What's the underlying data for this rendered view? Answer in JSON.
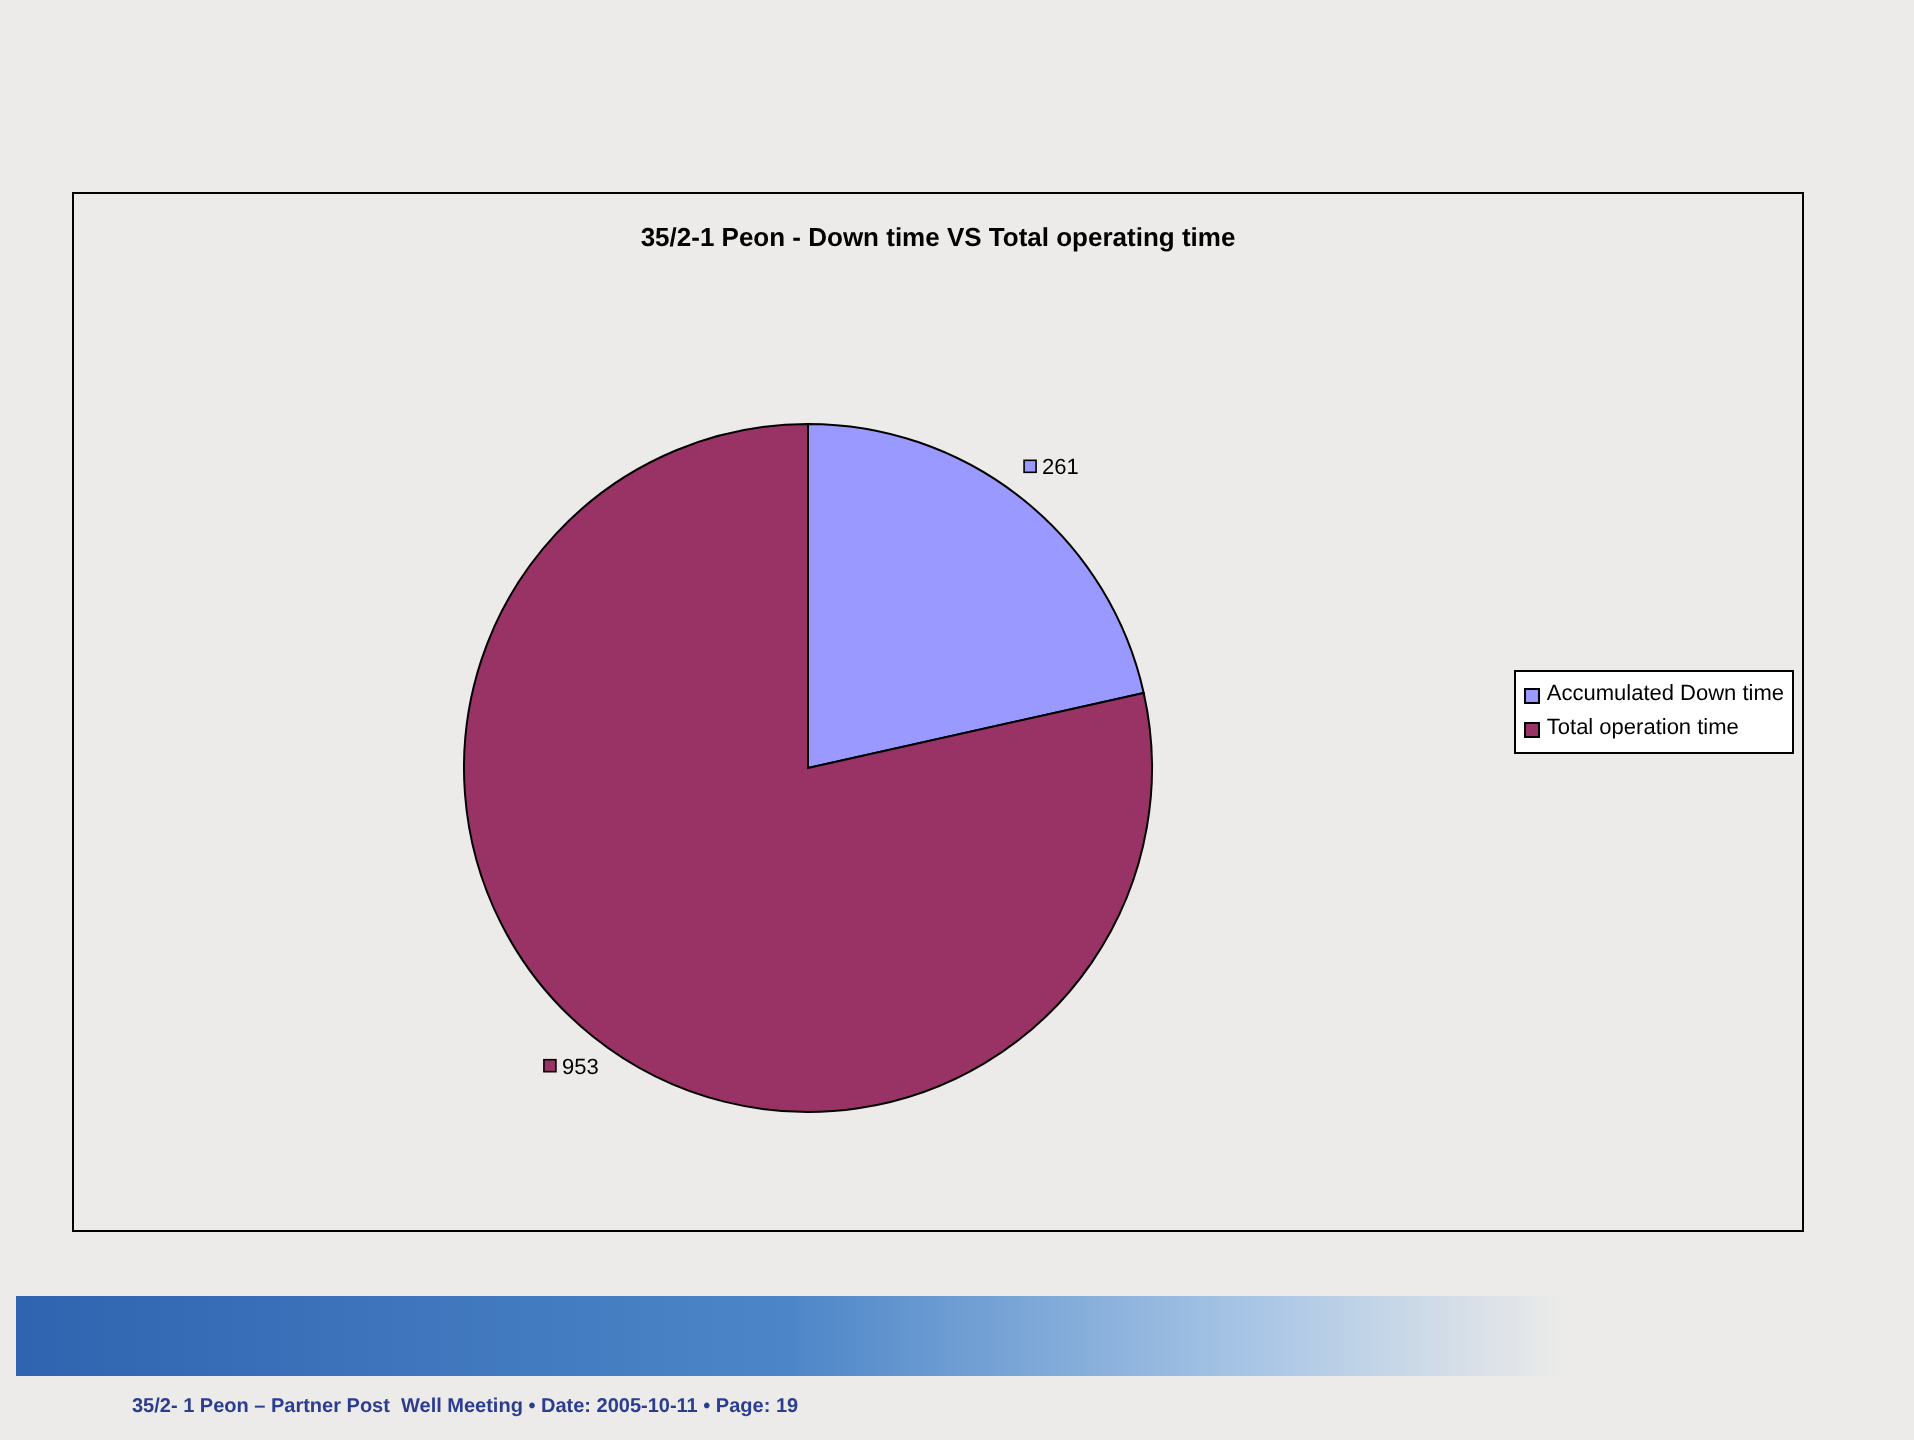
{
  "chart_data": {
    "type": "pie",
    "title": "35/2-1 Peon - Down time VS Total operating time",
    "categories": [
      "Accumulated Down time",
      "Total operation time"
    ],
    "values": [
      261,
      953
    ],
    "colors": [
      "#9999ff",
      "#993366"
    ],
    "data_labels": true,
    "legend": "right",
    "annotations": [
      "35/2- 1 Peon – Partner Post  Well Meeting • Date: 2005-10-11 • Page: 19"
    ]
  }
}
